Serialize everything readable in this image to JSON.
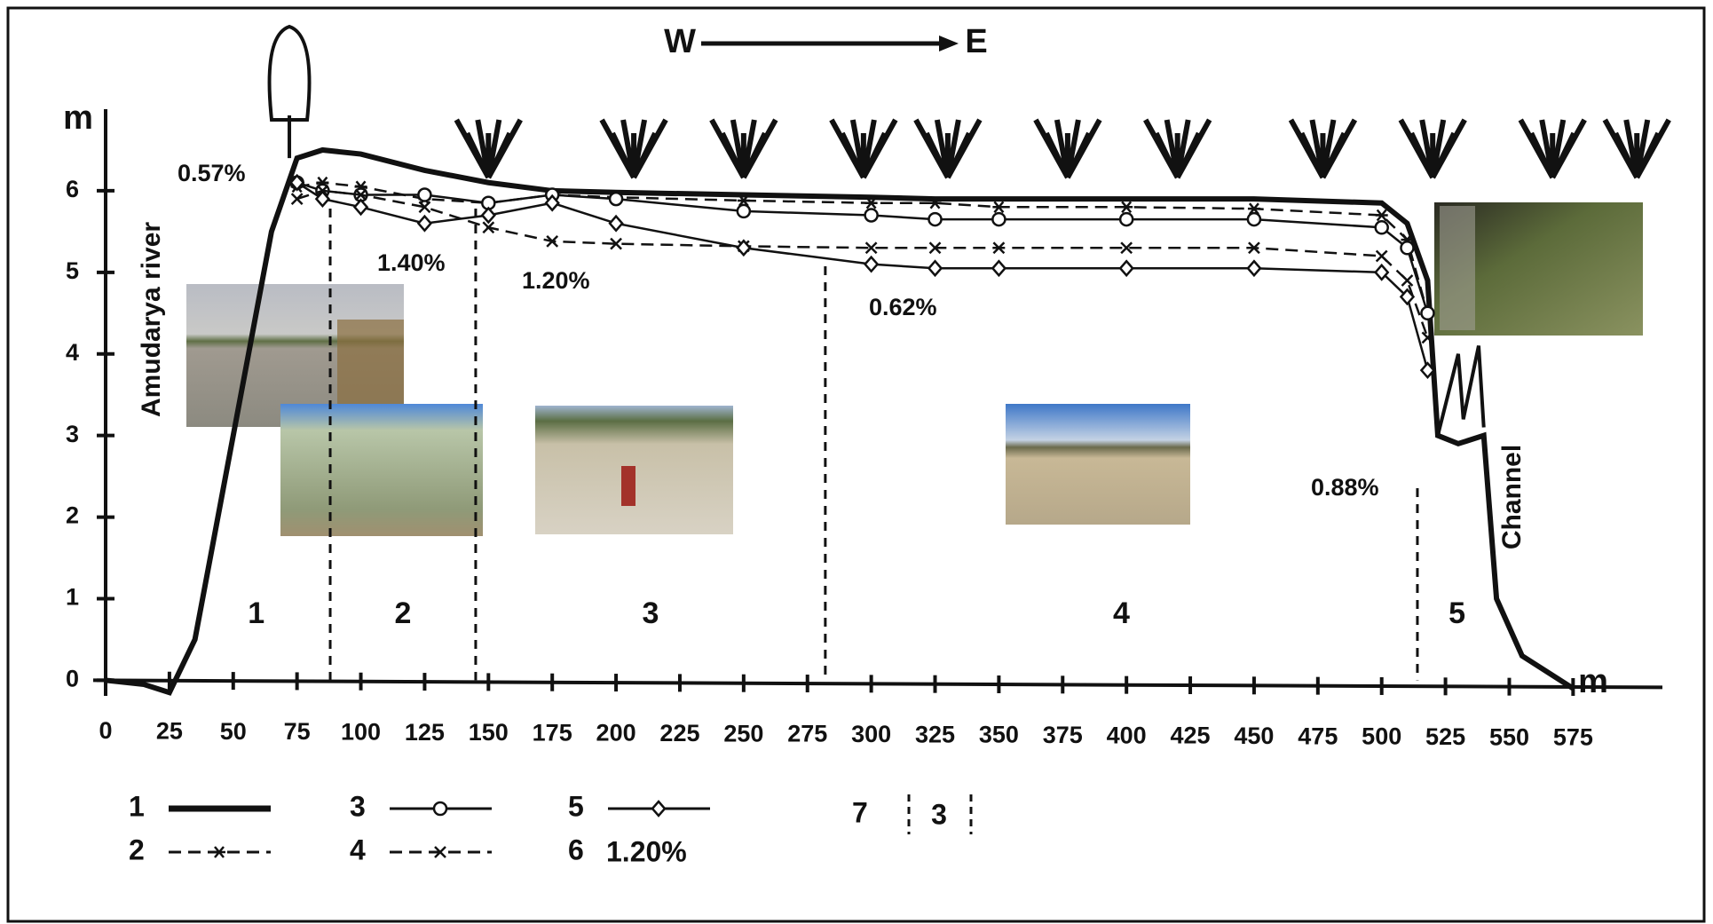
{
  "chart_data": {
    "type": "line",
    "direction": {
      "from": "W",
      "to": "E"
    },
    "y_label": "m",
    "x_label": "m",
    "side_labels": [
      "Amudarya river",
      "Channel"
    ],
    "xlim": [
      0,
      610
    ],
    "ylim": [
      -0.3,
      7
    ],
    "xticks": [
      0,
      25,
      50,
      75,
      100,
      125,
      150,
      175,
      200,
      225,
      250,
      275,
      300,
      325,
      350,
      375,
      400,
      425,
      450,
      475,
      500,
      525,
      550,
      575
    ],
    "yticks": [
      0,
      1,
      2,
      3,
      4,
      5,
      6
    ],
    "x": [
      0,
      15,
      25,
      35,
      50,
      65,
      75,
      85,
      100,
      125,
      150,
      175,
      200,
      250,
      300,
      325,
      350,
      400,
      450,
      500,
      510,
      518,
      522,
      530,
      540,
      545,
      555,
      575
    ],
    "series": [
      {
        "name": "1",
        "color": "#111111",
        "style": "thick",
        "marker": "none",
        "values": [
          0,
          -0.05,
          -0.15,
          0.5,
          3.0,
          5.5,
          6.4,
          6.5,
          6.45,
          6.25,
          6.1,
          6.0,
          5.98,
          5.95,
          5.92,
          5.9,
          5.9,
          5.9,
          5.9,
          5.85,
          5.6,
          4.9,
          3.0,
          2.9,
          3.0,
          1.0,
          0.3,
          -0.1
        ]
      },
      {
        "name": "2",
        "color": "#111111",
        "style": "dashed",
        "marker": "star",
        "values": [
          null,
          null,
          null,
          null,
          null,
          null,
          6.05,
          6.1,
          6.05,
          5.9,
          5.85,
          5.95,
          5.92,
          5.88,
          5.85,
          5.85,
          5.8,
          5.8,
          5.78,
          5.7,
          5.4,
          4.5,
          null,
          null,
          null,
          null,
          null,
          null
        ]
      },
      {
        "name": "3",
        "color": "#111111",
        "style": "solid",
        "marker": "circle",
        "values": [
          null,
          null,
          null,
          null,
          null,
          null,
          6.1,
          6.0,
          5.95,
          5.95,
          5.85,
          5.95,
          5.9,
          5.75,
          5.7,
          5.65,
          5.65,
          5.65,
          5.65,
          5.55,
          5.3,
          4.5,
          null,
          null,
          null,
          null,
          null,
          null
        ]
      },
      {
        "name": "4",
        "color": "#111111",
        "style": "dashed",
        "marker": "x",
        "values": [
          null,
          null,
          null,
          null,
          null,
          null,
          5.9,
          6.0,
          5.95,
          5.8,
          5.55,
          5.38,
          5.35,
          5.32,
          5.3,
          5.3,
          5.3,
          5.3,
          5.3,
          5.2,
          4.9,
          4.2,
          null,
          null,
          null,
          null,
          null,
          null
        ]
      },
      {
        "name": "5",
        "color": "#111111",
        "style": "solid",
        "marker": "diamond",
        "values": [
          null,
          null,
          null,
          null,
          null,
          null,
          6.1,
          5.9,
          5.8,
          5.6,
          5.7,
          5.85,
          5.6,
          5.3,
          5.1,
          5.05,
          5.05,
          5.05,
          5.05,
          5.0,
          4.7,
          3.8,
          null,
          null,
          null,
          null,
          null,
          null
        ]
      }
    ],
    "dividers": [
      88,
      145,
      282,
      514
    ],
    "zones": [
      "1",
      "2",
      "3",
      "4",
      "5"
    ],
    "annotations": [
      "0.57%",
      "1.40%",
      "1.20%",
      "0.62%",
      "0.88%"
    ],
    "extra_legend": [
      {
        "label": "6",
        "sample": "1.20%"
      },
      {
        "label": "7",
        "sample": "3"
      }
    ]
  }
}
